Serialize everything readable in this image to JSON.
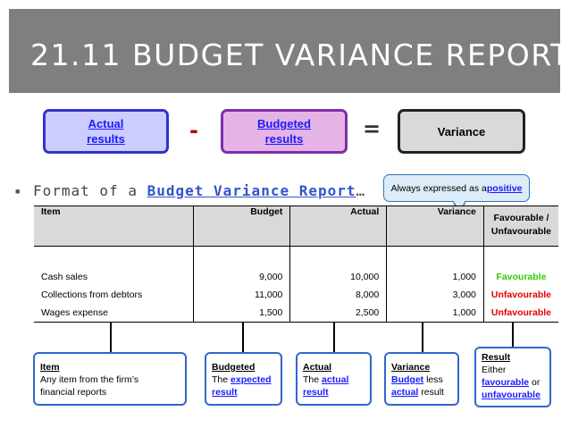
{
  "title": "21.11 BUDGET VARIANCE REPORT",
  "equation": {
    "actual_line1": "Actual",
    "actual_line2": "results",
    "minus": "-",
    "budgeted_line1": "Budgeted",
    "budgeted_line2": "results",
    "equals": "=",
    "variance": "Variance"
  },
  "format_text": "Format of a ",
  "format_link": "Budget Variance Report",
  "format_suffix": "…",
  "callout": {
    "text": "Always expressed as a ",
    "emphasis": "positive"
  },
  "table": {
    "headers": {
      "item": "Item",
      "budget": "Budget",
      "actual": "Actual",
      "variance": "Variance",
      "fav_line1": "Favourable /",
      "fav_line2": "Unfavourable"
    },
    "rows": [
      {
        "item": "Cash sales",
        "budget": "9,000",
        "actual": "10,000",
        "variance": "1,000",
        "result": "Favourable"
      },
      {
        "item": "Collections from debtors",
        "budget": "11,000",
        "actual": "8,000",
        "variance": "3,000",
        "result": "Unfavourable"
      },
      {
        "item": "Wages expense",
        "budget": "1,500",
        "actual": "2,500",
        "variance": "1,000",
        "result": "Unfavourable"
      }
    ]
  },
  "notes": {
    "item": {
      "title": "Item",
      "line1": "Any item from the firm’s",
      "line2": "financial reports"
    },
    "budgeted": {
      "title": "Budgeted",
      "prefix": "The ",
      "word": "expected",
      "word2": "result"
    },
    "actual": {
      "title": "Actual",
      "prefix": "The ",
      "word": "actual",
      "word2": "result"
    },
    "variance": {
      "title": "Variance",
      "word": "Budget",
      "mid": " less",
      "word2": "actual",
      "suffix": " result"
    },
    "result": {
      "title": "Result",
      "line1": "Either",
      "word": "favourable",
      "mid": " or",
      "word2": "unfavourable"
    }
  },
  "colors": {
    "favourable": "#33cc00",
    "unfavourable": "#e60000",
    "link": "#1a1aff"
  }
}
